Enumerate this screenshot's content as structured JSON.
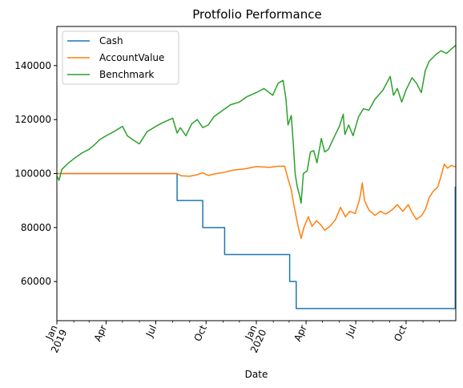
{
  "chart_data": {
    "type": "line",
    "title": "Protfolio Performance",
    "xlabel": "Date",
    "ylabel": "",
    "xlim": [
      "2019-01-01",
      "2020-12-31"
    ],
    "ylim": [
      45500,
      154500
    ],
    "grid": false,
    "legend_position": "top-left",
    "y_ticks": [
      60000,
      80000,
      100000,
      120000,
      140000
    ],
    "y_tick_labels": [
      "60000",
      "80000",
      "100000",
      "120000",
      "140000"
    ],
    "x_major_ticks": [
      {
        "date": "2019-01-01",
        "label": "Jan",
        "label2": "2019"
      },
      {
        "date": "2019-04-01",
        "label": "Apr",
        "label2": ""
      },
      {
        "date": "2019-07-01",
        "label": "Jul",
        "label2": ""
      },
      {
        "date": "2019-10-01",
        "label": "Oct",
        "label2": ""
      },
      {
        "date": "2020-01-01",
        "label": "Jan",
        "label2": "2020"
      },
      {
        "date": "2020-04-01",
        "label": "Apr",
        "label2": ""
      },
      {
        "date": "2020-07-01",
        "label": "Jul",
        "label2": ""
      },
      {
        "date": "2020-10-01",
        "label": "Oct",
        "label2": ""
      }
    ],
    "x_minor_ticks": [
      "2019-02-01",
      "2019-03-01",
      "2019-05-01",
      "2019-06-01",
      "2019-08-01",
      "2019-09-01",
      "2019-11-01",
      "2019-12-01",
      "2020-02-01",
      "2020-03-01",
      "2020-05-01",
      "2020-06-01",
      "2020-08-01",
      "2020-09-01",
      "2020-11-01",
      "2020-12-01"
    ],
    "series": [
      {
        "name": "Cash",
        "color": "#1f77b4",
        "step": true,
        "points": [
          [
            "2019-01-01",
            100000
          ],
          [
            "2019-08-09",
            90000
          ],
          [
            "2019-09-25",
            80000
          ],
          [
            "2019-11-04",
            70000
          ],
          [
            "2020-03-02",
            60000
          ],
          [
            "2020-03-14",
            50000
          ],
          [
            "2020-12-30",
            95000
          ]
        ]
      },
      {
        "name": "AccountValue",
        "color": "#ff7f0e",
        "step": false,
        "points": [
          [
            "2019-01-01",
            100000
          ],
          [
            "2019-08-09",
            100000
          ],
          [
            "2019-08-16",
            99200
          ],
          [
            "2019-09-01",
            99000
          ],
          [
            "2019-09-15",
            99600
          ],
          [
            "2019-09-25",
            100300
          ],
          [
            "2019-10-05",
            99300
          ],
          [
            "2019-10-20",
            100000
          ],
          [
            "2019-11-04",
            100500
          ],
          [
            "2019-11-20",
            101300
          ],
          [
            "2019-12-10",
            101700
          ],
          [
            "2020-01-01",
            102600
          ],
          [
            "2020-01-25",
            102300
          ],
          [
            "2020-02-10",
            102700
          ],
          [
            "2020-02-22",
            102700
          ],
          [
            "2020-02-28",
            98000
          ],
          [
            "2020-03-05",
            94000
          ],
          [
            "2020-03-10",
            88000
          ],
          [
            "2020-03-14",
            84000
          ],
          [
            "2020-03-18",
            80000
          ],
          [
            "2020-03-23",
            76000
          ],
          [
            "2020-03-28",
            80000
          ],
          [
            "2020-04-05",
            84000
          ],
          [
            "2020-04-12",
            80500
          ],
          [
            "2020-04-20",
            82500
          ],
          [
            "2020-04-28",
            81000
          ],
          [
            "2020-05-05",
            79000
          ],
          [
            "2020-05-15",
            80500
          ],
          [
            "2020-05-25",
            83000
          ],
          [
            "2020-06-03",
            87500
          ],
          [
            "2020-06-12",
            84000
          ],
          [
            "2020-06-20",
            86000
          ],
          [
            "2020-06-30",
            85200
          ],
          [
            "2020-07-08",
            90500
          ],
          [
            "2020-07-13",
            96500
          ],
          [
            "2020-07-17",
            90000
          ],
          [
            "2020-07-25",
            86500
          ],
          [
            "2020-08-05",
            84500
          ],
          [
            "2020-08-15",
            86000
          ],
          [
            "2020-08-25",
            85000
          ],
          [
            "2020-09-05",
            86500
          ],
          [
            "2020-09-15",
            88500
          ],
          [
            "2020-09-25",
            86000
          ],
          [
            "2020-10-05",
            88500
          ],
          [
            "2020-10-12",
            85500
          ],
          [
            "2020-10-20",
            83000
          ],
          [
            "2020-10-30",
            84500
          ],
          [
            "2020-11-06",
            87000
          ],
          [
            "2020-11-12",
            91000
          ],
          [
            "2020-11-20",
            93500
          ],
          [
            "2020-11-28",
            95000
          ],
          [
            "2020-12-04",
            99000
          ],
          [
            "2020-12-10",
            103500
          ],
          [
            "2020-12-16",
            102000
          ],
          [
            "2020-12-22",
            103000
          ],
          [
            "2020-12-30",
            102500
          ]
        ]
      },
      {
        "name": "Benchmark",
        "color": "#2ca02c",
        "step": false,
        "points": [
          [
            "2019-01-01",
            99000
          ],
          [
            "2019-01-05",
            97500
          ],
          [
            "2019-01-10",
            101500
          ],
          [
            "2019-01-20",
            103500
          ],
          [
            "2019-02-01",
            105500
          ],
          [
            "2019-02-15",
            107500
          ],
          [
            "2019-03-01",
            109000
          ],
          [
            "2019-03-10",
            110500
          ],
          [
            "2019-03-20",
            112500
          ],
          [
            "2019-04-01",
            114000
          ],
          [
            "2019-04-15",
            115500
          ],
          [
            "2019-05-01",
            117500
          ],
          [
            "2019-05-10",
            114000
          ],
          [
            "2019-05-20",
            112500
          ],
          [
            "2019-06-01",
            111000
          ],
          [
            "2019-06-15",
            115500
          ],
          [
            "2019-07-01",
            117500
          ],
          [
            "2019-07-15",
            119000
          ],
          [
            "2019-08-01",
            120500
          ],
          [
            "2019-08-09",
            115000
          ],
          [
            "2019-08-15",
            117000
          ],
          [
            "2019-08-25",
            114000
          ],
          [
            "2019-09-05",
            118500
          ],
          [
            "2019-09-15",
            120000
          ],
          [
            "2019-09-25",
            117000
          ],
          [
            "2019-10-05",
            118000
          ],
          [
            "2019-10-15",
            121000
          ],
          [
            "2019-11-01",
            123500
          ],
          [
            "2019-11-15",
            125500
          ],
          [
            "2019-12-01",
            126500
          ],
          [
            "2019-12-15",
            128500
          ],
          [
            "2020-01-01",
            130000
          ],
          [
            "2020-01-15",
            131500
          ],
          [
            "2020-01-31",
            129000
          ],
          [
            "2020-02-10",
            133500
          ],
          [
            "2020-02-19",
            134500
          ],
          [
            "2020-02-24",
            128000
          ],
          [
            "2020-02-28",
            118000
          ],
          [
            "2020-03-05",
            121500
          ],
          [
            "2020-03-09",
            110000
          ],
          [
            "2020-03-12",
            100000
          ],
          [
            "2020-03-16",
            95000
          ],
          [
            "2020-03-20",
            92000
          ],
          [
            "2020-03-23",
            89000
          ],
          [
            "2020-03-27",
            100000
          ],
          [
            "2020-04-03",
            101000
          ],
          [
            "2020-04-09",
            108000
          ],
          [
            "2020-04-15",
            108500
          ],
          [
            "2020-04-21",
            104000
          ],
          [
            "2020-04-29",
            113000
          ],
          [
            "2020-05-05",
            108000
          ],
          [
            "2020-05-12",
            109000
          ],
          [
            "2020-05-20",
            112500
          ],
          [
            "2020-06-01",
            117500
          ],
          [
            "2020-06-08",
            122000
          ],
          [
            "2020-06-11",
            114500
          ],
          [
            "2020-06-18",
            118000
          ],
          [
            "2020-06-26",
            114000
          ],
          [
            "2020-07-06",
            121000
          ],
          [
            "2020-07-15",
            124000
          ],
          [
            "2020-07-25",
            123500
          ],
          [
            "2020-08-05",
            127500
          ],
          [
            "2020-08-20",
            131000
          ],
          [
            "2020-09-02",
            136000
          ],
          [
            "2020-09-08",
            129000
          ],
          [
            "2020-09-15",
            131500
          ],
          [
            "2020-09-23",
            126500
          ],
          [
            "2020-10-01",
            131000
          ],
          [
            "2020-10-12",
            135500
          ],
          [
            "2020-10-20",
            133500
          ],
          [
            "2020-10-29",
            130000
          ],
          [
            "2020-11-05",
            138000
          ],
          [
            "2020-11-12",
            141500
          ],
          [
            "2020-11-24",
            144000
          ],
          [
            "2020-12-04",
            145500
          ],
          [
            "2020-12-14",
            144500
          ],
          [
            "2020-12-22",
            146000
          ],
          [
            "2020-12-31",
            147500
          ]
        ]
      }
    ]
  }
}
